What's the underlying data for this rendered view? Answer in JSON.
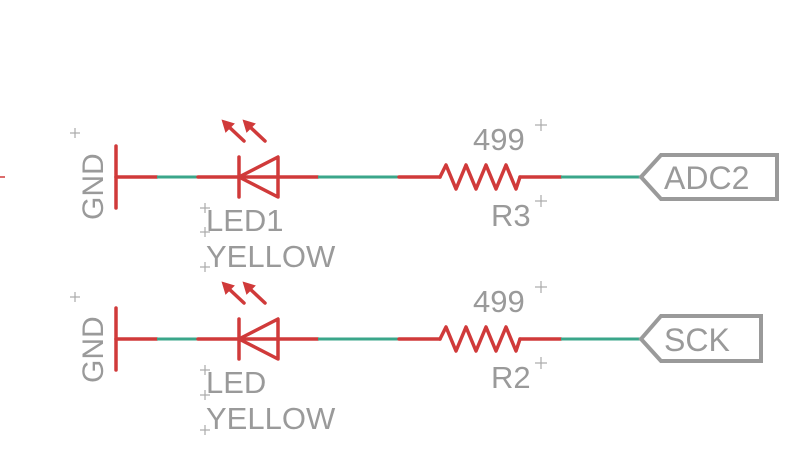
{
  "rows": [
    {
      "gnd_label": "GND",
      "led_name": "LED1",
      "led_value": "YELLOW",
      "res_value": "499",
      "res_name": "R3",
      "net_label": "ADC2"
    },
    {
      "gnd_label": "GND",
      "led_name": "LED",
      "led_value": "YELLOW",
      "res_value": "499",
      "res_name": "R2",
      "net_label": "SCK"
    }
  ],
  "colors": {
    "symbol": "#d03a3a",
    "wire": "#3aa68a",
    "label": "#9a9a9a"
  }
}
